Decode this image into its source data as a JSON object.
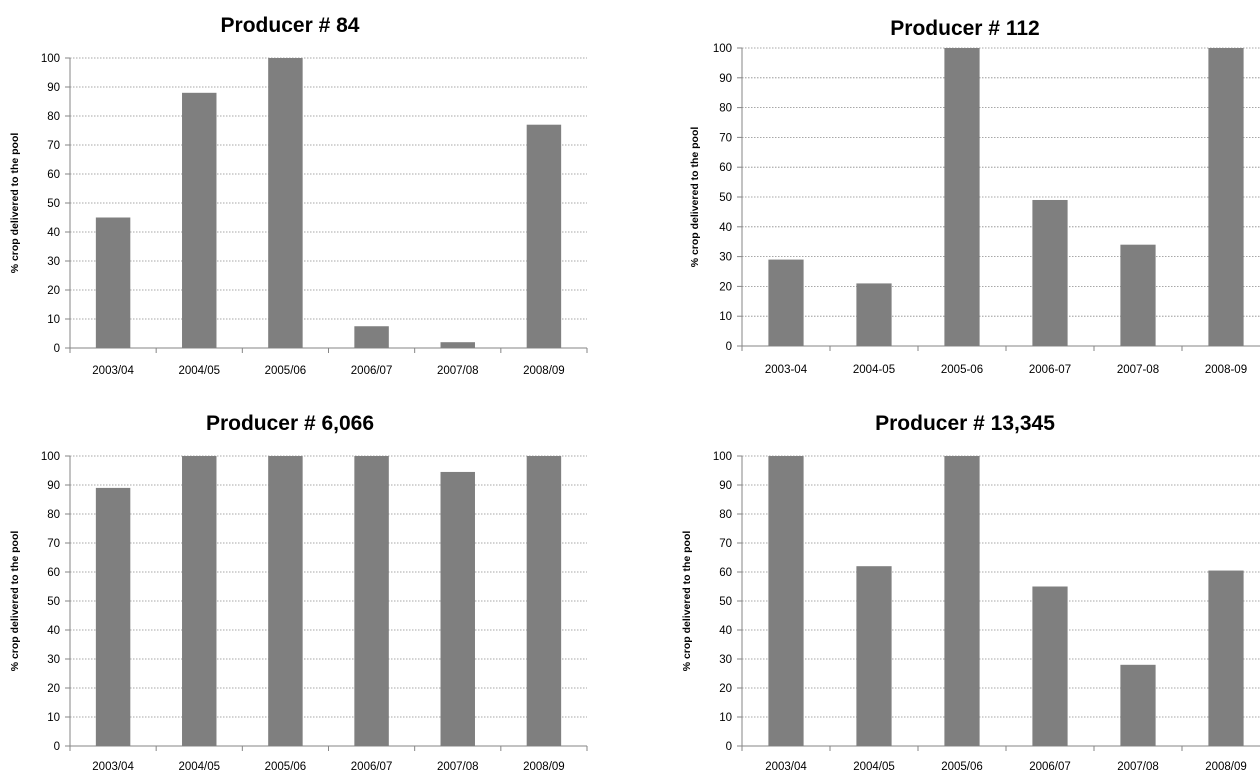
{
  "colors": {
    "bar": "#7f7f7f",
    "grid": "#8a8a8a",
    "axis": "#868686"
  },
  "chart_data": [
    {
      "type": "bar",
      "title": "Producer # 84",
      "ylabel": "% crop delivered to the pool",
      "xlabel": "",
      "ylim": [
        0,
        100
      ],
      "yticks": [
        0,
        10,
        20,
        30,
        40,
        50,
        60,
        70,
        80,
        90,
        100
      ],
      "grid": true,
      "categories": [
        "2003/04",
        "2004/05",
        "2005/06",
        "2006/07",
        "2007/08",
        "2008/09"
      ],
      "values": [
        45,
        88,
        100,
        7.5,
        2,
        77
      ]
    },
    {
      "type": "bar",
      "title": "Producer # 112",
      "ylabel": "% crop delivered to the pool",
      "xlabel": "",
      "ylim": [
        0,
        100
      ],
      "yticks": [
        0,
        10,
        20,
        30,
        40,
        50,
        60,
        70,
        80,
        90,
        100
      ],
      "grid": true,
      "categories": [
        "2003-04",
        "2004-05",
        "2005-06",
        "2006-07",
        "2007-08",
        "2008-09"
      ],
      "values": [
        29,
        21,
        100,
        49,
        34,
        100
      ]
    },
    {
      "type": "bar",
      "title": "Producer # 6,066",
      "ylabel": "% crop delivered to the pool",
      "xlabel": "",
      "ylim": [
        0,
        100
      ],
      "yticks": [
        0,
        10,
        20,
        30,
        40,
        50,
        60,
        70,
        80,
        90,
        100
      ],
      "grid": true,
      "categories": [
        "2003/04",
        "2004/05",
        "2005/06",
        "2006/07",
        "2007/08",
        "2008/09"
      ],
      "values": [
        89,
        100,
        100,
        100,
        94.5,
        100
      ]
    },
    {
      "type": "bar",
      "title": "Producer # 13,345",
      "ylabel": "% crop delivered to the pool",
      "xlabel": "",
      "ylim": [
        0,
        100
      ],
      "yticks": [
        0,
        10,
        20,
        30,
        40,
        50,
        60,
        70,
        80,
        90,
        100
      ],
      "grid": true,
      "categories": [
        "2003/04",
        "2004/05",
        "2005/06",
        "2006/07",
        "2007/08",
        "2008/09"
      ],
      "values": [
        100,
        62,
        100,
        55,
        28,
        60.5
      ]
    }
  ]
}
